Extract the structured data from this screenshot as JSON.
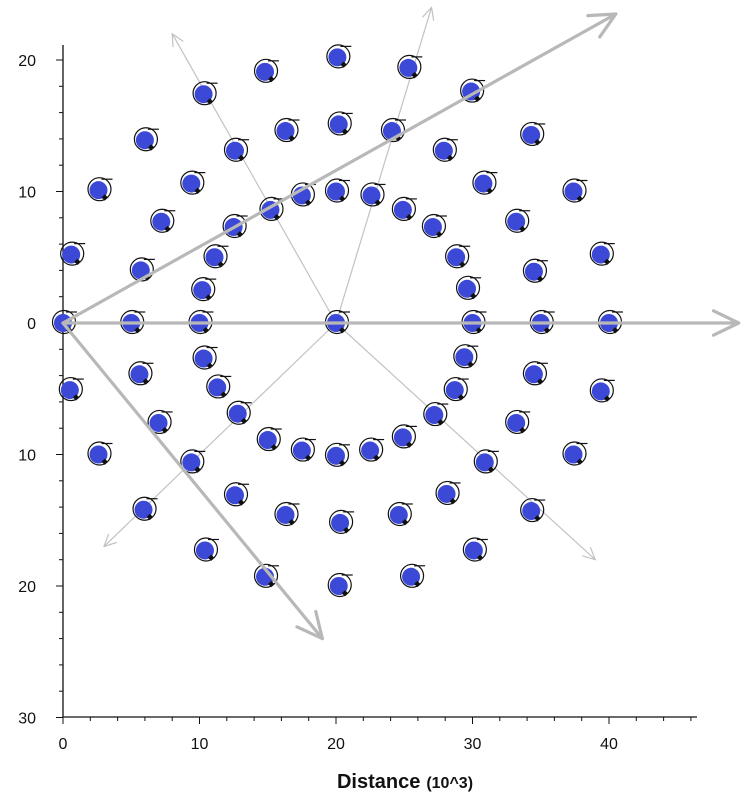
{
  "chart_data": {
    "type": "scatter",
    "title": "",
    "xlabel": "Distance",
    "xlabel_unit": "(10^3)",
    "ylabel": "",
    "xlim": [
      0,
      46
    ],
    "ylim": [
      -20,
      30
    ],
    "y_axis_inverted": true,
    "x_ticks": [
      0,
      10,
      20,
      30,
      40
    ],
    "x_tick_labels": [
      "0",
      "10",
      "20",
      "30",
      "40"
    ],
    "y_ticks": [
      -20,
      -10,
      0,
      10,
      20,
      30
    ],
    "y_tick_labels": [
      "20",
      "10",
      "0",
      "10",
      "20",
      "30"
    ],
    "grid": false,
    "marker_fill": "#3b49d6",
    "marker_ring": "#111111",
    "ray_color": "#c2c2c2",
    "series": [
      {
        "values": [
          {
            "x": 20,
            "y": 0
          },
          {
            "x": 30,
            "y": 0
          },
          {
            "x": 29.4,
            "y": -2.6
          },
          {
            "x": 28.7,
            "y": -5.1
          },
          {
            "x": 27.2,
            "y": -7.0
          },
          {
            "x": 24.9,
            "y": -8.7
          },
          {
            "x": 22.5,
            "y": -9.7
          },
          {
            "x": 20,
            "y": -10.1
          },
          {
            "x": 17.5,
            "y": -9.7
          },
          {
            "x": 15,
            "y": -8.9
          },
          {
            "x": 12.8,
            "y": -6.9
          },
          {
            "x": 11.3,
            "y": -4.9
          },
          {
            "x": 10.3,
            "y": -2.7
          },
          {
            "x": 10,
            "y": 0
          },
          {
            "x": 10.2,
            "y": 2.5
          },
          {
            "x": 11.1,
            "y": 5.0
          },
          {
            "x": 12.5,
            "y": 7.3
          },
          {
            "x": 15.2,
            "y": 8.6
          },
          {
            "x": 17.5,
            "y": 9.7
          },
          {
            "x": 20,
            "y": 10.0
          },
          {
            "x": 22.6,
            "y": 9.7
          },
          {
            "x": 24.9,
            "y": 8.6
          },
          {
            "x": 27.1,
            "y": 7.3
          },
          {
            "x": 28.8,
            "y": 5.0
          },
          {
            "x": 29.6,
            "y": 2.6
          },
          {
            "x": 35,
            "y": 0
          },
          {
            "x": 34.5,
            "y": -3.9
          },
          {
            "x": 33.2,
            "y": -7.6
          },
          {
            "x": 30.9,
            "y": -10.6
          },
          {
            "x": 28.1,
            "y": -13.0
          },
          {
            "x": 24.6,
            "y": -14.6
          },
          {
            "x": 20.3,
            "y": -15.2
          },
          {
            "x": 16.3,
            "y": -14.6
          },
          {
            "x": 12.6,
            "y": -13.1
          },
          {
            "x": 9.4,
            "y": -10.6
          },
          {
            "x": 7,
            "y": -7.6
          },
          {
            "x": 5.6,
            "y": -3.9
          },
          {
            "x": 5,
            "y": 0
          },
          {
            "x": 5.7,
            "y": 4.0
          },
          {
            "x": 7.2,
            "y": 7.7
          },
          {
            "x": 9.4,
            "y": 10.6
          },
          {
            "x": 12.6,
            "y": 13.1
          },
          {
            "x": 16.3,
            "y": 14.6
          },
          {
            "x": 20.2,
            "y": 15.1
          },
          {
            "x": 24.1,
            "y": 14.6
          },
          {
            "x": 27.9,
            "y": 13.1
          },
          {
            "x": 30.8,
            "y": 10.6
          },
          {
            "x": 33.2,
            "y": 7.7
          },
          {
            "x": 34.5,
            "y": 3.9
          },
          {
            "x": 40,
            "y": 0
          },
          {
            "x": 39.4,
            "y": -5.2
          },
          {
            "x": 37.4,
            "y": -10.0
          },
          {
            "x": 34.3,
            "y": -14.3
          },
          {
            "x": 30.1,
            "y": -17.3
          },
          {
            "x": 25.5,
            "y": -19.3
          },
          {
            "x": 20.2,
            "y": -20.0
          },
          {
            "x": 14.8,
            "y": -19.3
          },
          {
            "x": 10.4,
            "y": -17.3
          },
          {
            "x": 5.9,
            "y": -14.2
          },
          {
            "x": 2.6,
            "y": -10.0
          },
          {
            "x": 0.5,
            "y": -5.1
          },
          {
            "x": 0,
            "y": 0
          },
          {
            "x": 0.6,
            "y": 5.2
          },
          {
            "x": 2.6,
            "y": 10.1
          },
          {
            "x": 6,
            "y": 13.9
          },
          {
            "x": 10.3,
            "y": 17.4
          },
          {
            "x": 14.8,
            "y": 19.1
          },
          {
            "x": 20.1,
            "y": 20.2
          },
          {
            "x": 25.3,
            "y": 19.4
          },
          {
            "x": 29.9,
            "y": 17.6
          },
          {
            "x": 34.3,
            "y": 14.3
          },
          {
            "x": 37.4,
            "y": 10.0
          },
          {
            "x": 39.4,
            "y": 5.2
          }
        ]
      }
    ],
    "rays_thin": [
      {
        "from": [
          20,
          0
        ],
        "to": [
          8,
          22
        ]
      },
      {
        "from": [
          20,
          0
        ],
        "to": [
          27,
          24
        ]
      },
      {
        "from": [
          20,
          0
        ],
        "to": [
          39,
          -18
        ]
      },
      {
        "from": [
          20,
          0
        ],
        "to": [
          3,
          -17
        ]
      }
    ],
    "rays_thick": [
      {
        "from": [
          0,
          0
        ],
        "to": [
          40.5,
          23.5
        ]
      },
      {
        "from": [
          0,
          0
        ],
        "to": [
          49.5,
          0
        ]
      },
      {
        "from": [
          0,
          0
        ],
        "to": [
          19,
          -24
        ]
      }
    ]
  }
}
